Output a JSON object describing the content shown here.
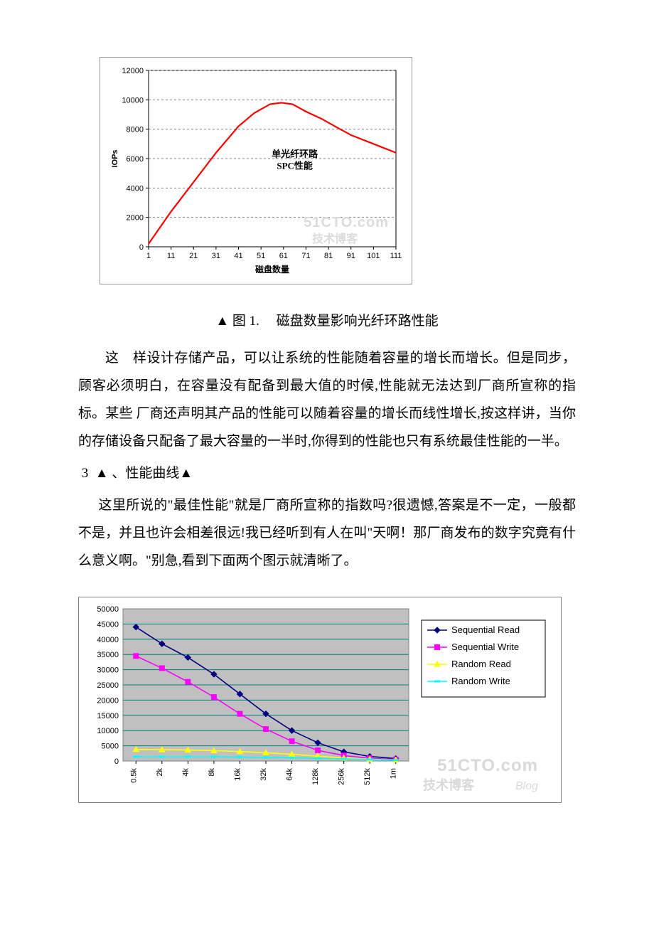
{
  "chart1": {
    "type": "line",
    "ylabel": "IOPs",
    "xlabel": "磁盘数量",
    "inner_label_1": "单光纤环路",
    "inner_label_2": "SPC性能",
    "ylim": [
      0,
      12000
    ],
    "yticks": [
      0,
      2000,
      4000,
      6000,
      8000,
      10000,
      12000
    ],
    "xticks": [
      1,
      11,
      21,
      31,
      41,
      51,
      61,
      71,
      81,
      91,
      101,
      111
    ],
    "xlim": [
      1,
      111
    ],
    "line_color": "#ff0000",
    "grid_color": "#808080",
    "tick_fontsize": 11,
    "label_fontsize": 11,
    "points": [
      {
        "x": 1,
        "y": 200
      },
      {
        "x": 11,
        "y": 2400
      },
      {
        "x": 21,
        "y": 4400
      },
      {
        "x": 31,
        "y": 6400
      },
      {
        "x": 41,
        "y": 8200
      },
      {
        "x": 48,
        "y": 9100
      },
      {
        "x": 55,
        "y": 9700
      },
      {
        "x": 60,
        "y": 9800
      },
      {
        "x": 65,
        "y": 9700
      },
      {
        "x": 71,
        "y": 9200
      },
      {
        "x": 78,
        "y": 8700
      },
      {
        "x": 85,
        "y": 8100
      },
      {
        "x": 91,
        "y": 7600
      },
      {
        "x": 101,
        "y": 7000
      },
      {
        "x": 111,
        "y": 6400
      }
    ],
    "watermark_text1": "51CTO.com",
    "watermark_text2": "技术博客",
    "watermark_color": "#dcdcdc"
  },
  "caption1_prefix": "图 1.",
  "caption1_text": "磁盘数量影响光纤环路性能",
  "para1": "这　样设计存储产品，可以让系统的性能随着容量的增长而增长。但是同步，顾客必须明白，在容量没有配备到最大值的时候,性能就无法达到厂商所宣称的指标。某些 厂商还声明其产品的性能可以随着容量的增长而线性增长,按这样讲，当你的存储设备只配备了最大容量的一半时,你得到的性能也只有系统最佳性能的一半。",
  "section3_num": "3",
  "section3_title": "、性能曲线",
  "para2": "这里所说的\"最佳性能\"就是厂商所宣称的指数吗?很遗憾,答案是不一定，一般都不是，并且也许会相差很远!我已经听到有人在叫\"天啊！那厂商发布的数字究竟有什么意义啊。\"别急,看到下面两个图示就清晰了。",
  "chart2": {
    "type": "line",
    "ylim": [
      0,
      50000
    ],
    "yticks": [
      0,
      5000,
      10000,
      15000,
      20000,
      25000,
      30000,
      35000,
      40000,
      45000,
      50000
    ],
    "x_categories": [
      "0.5k",
      "2k",
      "4k",
      "8k",
      "16k",
      "32k",
      "64k",
      "128k",
      "256k",
      "512k",
      "1m"
    ],
    "grid_color": "#008080",
    "plot_bg": "#c0c0c0",
    "tick_fontsize": 11,
    "series": [
      {
        "name": "Sequential Read",
        "color": "#000080",
        "marker": "diamond",
        "values": [
          44000,
          38500,
          34000,
          28500,
          22000,
          15500,
          10000,
          6000,
          3000,
          1500,
          800
        ]
      },
      {
        "name": "Sequential Write",
        "color": "#ff00ff",
        "marker": "square",
        "values": [
          34500,
          30500,
          26000,
          21000,
          15500,
          10500,
          6500,
          3500,
          1800,
          900,
          500
        ]
      },
      {
        "name": "Random Read",
        "color": "#ffff00",
        "marker": "triangle",
        "values": [
          3800,
          3700,
          3600,
          3400,
          3100,
          2700,
          2200,
          1600,
          1000,
          600,
          350
        ]
      },
      {
        "name": "Random Write",
        "color": "#00ffff",
        "marker": "line",
        "values": [
          1400,
          1400,
          1400,
          1400,
          1300,
          1200,
          1100,
          900,
          700,
          500,
          300
        ]
      }
    ],
    "legend_border": "#000000",
    "watermark_text1": "51CTO.com",
    "watermark_text2": "技术博客",
    "watermark_text3": "Blog",
    "watermark_color": "#d9d9d9"
  }
}
